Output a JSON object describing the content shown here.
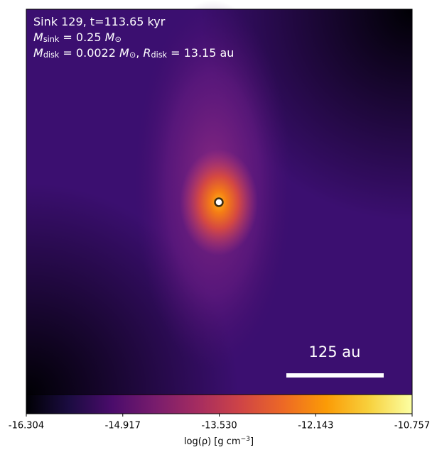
{
  "chart_data": {
    "type": "image",
    "annotations": [
      [
        {
          "text": "Sink 129, t=113.65 kyr",
          "style": "normal"
        }
      ],
      [
        {
          "text": "M",
          "style": "italic"
        },
        {
          "text": "sink",
          "style": "sub"
        },
        {
          "text": " = 0.25 ",
          "style": "normal"
        },
        {
          "text": "M",
          "style": "italic"
        },
        {
          "text": "⊙",
          "style": "sub"
        }
      ],
      [
        {
          "text": "M",
          "style": "italic"
        },
        {
          "text": "disk",
          "style": "sub"
        },
        {
          "text": " = 0.0022 ",
          "style": "normal"
        },
        {
          "text": "M",
          "style": "italic"
        },
        {
          "text": "⊙",
          "style": "sub"
        },
        {
          "text": ", ",
          "style": "normal"
        },
        {
          "text": "R",
          "style": "italic"
        },
        {
          "text": "disk",
          "style": "sub"
        },
        {
          "text": " = 13.15 au",
          "style": "normal"
        }
      ]
    ],
    "scale_bar": "125 au",
    "colormap": "inferno",
    "clim": [
      -16.304,
      -10.757
    ],
    "cticks": [
      -16.304,
      -14.917,
      {
        "value": -13.53,
        "label": "-13.530"
      },
      -12.143,
      -10.757
    ],
    "colorbar_label": [
      {
        "text": "log(ρ) [g cm",
        "style": "normal"
      },
      {
        "text": "−3",
        "style": "sup"
      },
      {
        "text": "]",
        "style": "normal"
      }
    ]
  }
}
